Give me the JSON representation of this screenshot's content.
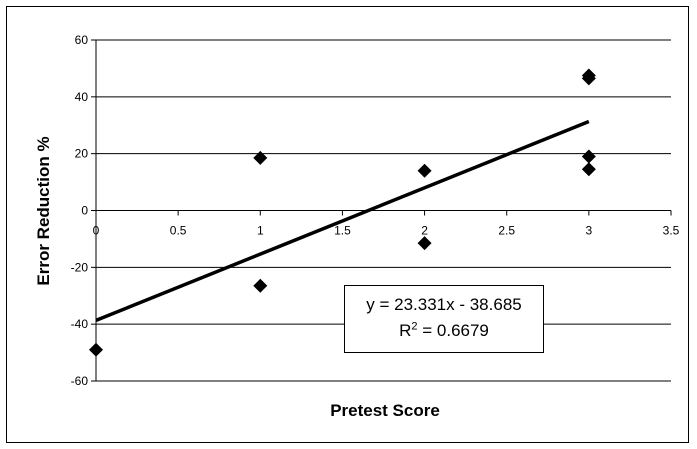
{
  "chart_data": {
    "type": "scatter",
    "xlabel": "Pretest Score",
    "ylabel": "Error Reduction %",
    "xlim": [
      0,
      3.5
    ],
    "ylim": [
      -60,
      60
    ],
    "xticks": [
      "0",
      "0.5",
      "1",
      "1.5",
      "2",
      "2.5",
      "3",
      "3.5"
    ],
    "yticks": [
      "60",
      "40",
      "20",
      "0",
      "-20",
      "-40",
      "-60"
    ],
    "grid": "horizontal",
    "points": [
      {
        "x": 0,
        "y": -49
      },
      {
        "x": 1,
        "y": 18.5
      },
      {
        "x": 1,
        "y": -26.5
      },
      {
        "x": 2,
        "y": 14
      },
      {
        "x": 2,
        "y": -11.5
      },
      {
        "x": 3,
        "y": 47.5
      },
      {
        "x": 3,
        "y": 46.5
      },
      {
        "x": 3,
        "y": 19
      },
      {
        "x": 3,
        "y": 14.5
      }
    ],
    "trendline": {
      "type": "linear",
      "slope": 23.331,
      "intercept": -38.685,
      "x_range": [
        0,
        3
      ],
      "equation": "y = 23.331x - 38.685",
      "r2_label": "R",
      "r2_sup": "2",
      "r2_value": " = 0.6679"
    }
  }
}
